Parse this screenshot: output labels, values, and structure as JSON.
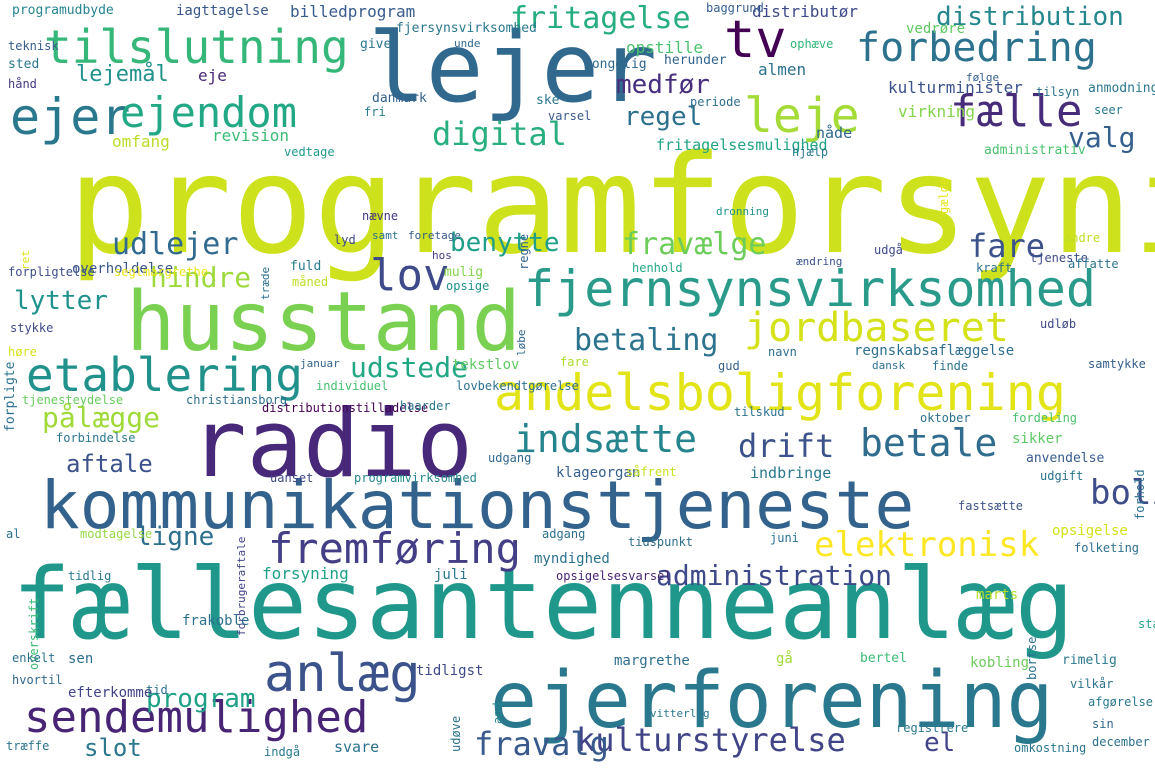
{
  "words": [
    {
      "text": "programforsyning",
      "color": "#cde11d"
    },
    {
      "text": "fællesantenneanlæg",
      "color": "#1f988b"
    },
    {
      "text": "kommunikationstjeneste",
      "color": "#33638d"
    },
    {
      "text": "husstand",
      "color": "#7ad151"
    },
    {
      "text": "radio",
      "color": "#482878"
    },
    {
      "text": "ejerforening",
      "color": "#2a788e"
    },
    {
      "text": "lejer",
      "color": "#31688e"
    },
    {
      "text": "andelsboligforening",
      "color": "#e2e418"
    },
    {
      "text": "fjernsynsvirksomhed",
      "color": "#2a9b8a"
    },
    {
      "text": "anlæg",
      "color": "#3b528b"
    },
    {
      "text": "sendemulighed",
      "color": "#482475"
    },
    {
      "text": "tilslutning",
      "color": "#35b779"
    },
    {
      "text": "ejer",
      "color": "#2a788e"
    },
    {
      "text": "ejendom",
      "color": "#22a884"
    },
    {
      "text": "fremføring",
      "color": "#433e85"
    },
    {
      "text": "etablering",
      "color": "#21918c"
    },
    {
      "text": "leje",
      "color": "#a5db36"
    },
    {
      "text": "forbedring",
      "color": "#2c728e"
    },
    {
      "text": "tv",
      "color": "#440154"
    },
    {
      "text": "fælle",
      "color": "#472c7a"
    },
    {
      "text": "lov",
      "color": "#3e4a89"
    },
    {
      "text": "jordbaseret",
      "color": "#d5e21a"
    },
    {
      "text": "indsætte",
      "color": "#25848e"
    },
    {
      "text": "betale",
      "color": "#2f6c8e"
    },
    {
      "text": "elektronisk",
      "color": "#fde725"
    },
    {
      "text": "kulturstyrelse",
      "color": "#414487"
    },
    {
      "text": "digital",
      "color": "#29af7f"
    },
    {
      "text": "udlejer",
      "color": "#306a8e"
    },
    {
      "text": "betaling",
      "color": "#2c738e"
    },
    {
      "text": "administration",
      "color": "#3e4989"
    },
    {
      "text": "drift",
      "color": "#3b528b"
    },
    {
      "text": "fritagelse",
      "color": "#26ad81"
    },
    {
      "text": "distribution",
      "color": "#24878e"
    },
    {
      "text": "fare",
      "color": "#3b528b"
    },
    {
      "text": "hindre",
      "color": "#9dd93b"
    },
    {
      "text": "fravælge",
      "color": "#6ccd5a"
    },
    {
      "text": "benytte",
      "color": "#1f9e89"
    },
    {
      "text": "udstede",
      "color": "#22a785"
    },
    {
      "text": "pålægge",
      "color": "#a0da39"
    },
    {
      "text": "lytter",
      "color": "#20928c"
    },
    {
      "text": "lejemål",
      "color": "#21918c"
    },
    {
      "text": "medfør",
      "color": "#472f7d"
    },
    {
      "text": "regel",
      "color": "#2d708e"
    },
    {
      "text": "valg",
      "color": "#355f8d"
    },
    {
      "text": "ligne",
      "color": "#2e6f8e"
    },
    {
      "text": "program",
      "color": "#1fa187"
    },
    {
      "text": "aftale",
      "color": "#3b528b"
    },
    {
      "text": "fravalg",
      "color": "#38598c"
    },
    {
      "text": "el",
      "color": "#414487"
    },
    {
      "text": "bolig",
      "color": "#3e4c8a"
    },
    {
      "text": "slot",
      "color": "#2a778e"
    },
    {
      "text": "eje",
      "color": "#482878"
    },
    {
      "text": "almen",
      "color": "#2c728e"
    },
    {
      "text": "distributør",
      "color": "#3e4989"
    },
    {
      "text": "billedprogram",
      "color": "#375b8d"
    },
    {
      "text": "iagttagelse",
      "color": "#38588c"
    },
    {
      "text": "programudbyde",
      "color": "#25848e"
    },
    {
      "text": "fjersynsvirksomhed",
      "color": "#2a788e"
    },
    {
      "text": "opstille",
      "color": "#4ac16d"
    },
    {
      "text": "kongelig",
      "color": "#31688e"
    },
    {
      "text": "herunder",
      "color": "#33638d"
    },
    {
      "text": "ophæve",
      "color": "#34b679"
    },
    {
      "text": "baggrund",
      "color": "#355f8d"
    },
    {
      "text": "teknisk",
      "color": "#365c8d"
    },
    {
      "text": "sted",
      "color": "#2a788e"
    },
    {
      "text": "hånd",
      "color": "#443a83"
    },
    {
      "text": "give",
      "color": "#2c738e"
    },
    {
      "text": "unde",
      "color": "#31688e"
    },
    {
      "text": "danmark",
      "color": "#33638d"
    },
    {
      "text": "fri",
      "color": "#287c8e"
    },
    {
      "text": "ske",
      "color": "#2a778e"
    },
    {
      "text": "varsel",
      "color": "#38598c"
    },
    {
      "text": "periode",
      "color": "#2e6f8e"
    },
    {
      "text": "revision",
      "color": "#3bbb75"
    },
    {
      "text": "omfang",
      "color": "#bade28"
    },
    {
      "text": "vedtage",
      "color": "#1f9a8a"
    },
    {
      "text": "fritagelsesmulighed",
      "color": "#20a386"
    },
    {
      "text": "hjælp",
      "color": "#2a788e"
    },
    {
      "text": "nåde",
      "color": "#31688e"
    },
    {
      "text": "kulturminister",
      "color": "#3b528b"
    },
    {
      "text": "virkning",
      "color": "#84d44b"
    },
    {
      "text": "anmodning",
      "color": "#2a788e"
    },
    {
      "text": "tilsyn",
      "color": "#2c728e"
    },
    {
      "text": "seer",
      "color": "#2a788e"
    },
    {
      "text": "følge",
      "color": "#355f8d"
    },
    {
      "text": "vedrøre",
      "color": "#5ec962"
    },
    {
      "text": "gælde",
      "color": "#e5e419"
    },
    {
      "text": "administrativ",
      "color": "#4ac16d"
    },
    {
      "text": "ret",
      "color": "#dde318"
    },
    {
      "text": "forpligtelse",
      "color": "#3e4c8a"
    },
    {
      "text": "overholdelse",
      "color": "#39568c"
    },
    {
      "text": "seglmargrethe",
      "color": "#e8e419"
    },
    {
      "text": "fuld",
      "color": "#287c8e"
    },
    {
      "text": "lyd",
      "color": "#3e4989"
    },
    {
      "text": "samt",
      "color": "#2c728e"
    },
    {
      "text": "foretage",
      "color": "#365c8d"
    },
    {
      "text": "hos",
      "color": "#443983"
    },
    {
      "text": "nævne",
      "color": "#453781"
    },
    {
      "text": "træde",
      "color": "#2d708e"
    },
    {
      "text": "måned",
      "color": "#bddf26"
    },
    {
      "text": "mulig",
      "color": "#85d54a"
    },
    {
      "text": "opsige",
      "color": "#21918c"
    },
    {
      "text": "regne",
      "color": "#32648e"
    },
    {
      "text": "dronning",
      "color": "#20928c"
    },
    {
      "text": "henhold",
      "color": "#22a884"
    },
    {
      "text": "ændring",
      "color": "#3b528b"
    },
    {
      "text": "udgå",
      "color": "#3e4a89"
    },
    {
      "text": "kraft",
      "color": "#2d708e"
    },
    {
      "text": "andre",
      "color": "#c0df25"
    },
    {
      "text": "tjeneste",
      "color": "#3e4c8a"
    },
    {
      "text": "affatte",
      "color": "#2c728e"
    },
    {
      "text": "stykke",
      "color": "#3e4989"
    },
    {
      "text": "høre",
      "color": "#d8e219"
    },
    {
      "text": "forpligte",
      "color": "#2d708e"
    },
    {
      "text": "tjenesteydelse",
      "color": "#67cc5c"
    },
    {
      "text": "januar",
      "color": "#33638d"
    },
    {
      "text": "individuel",
      "color": "#44bf70"
    },
    {
      "text": "fare",
      "color": "#addc30"
    },
    {
      "text": "løbe",
      "color": "#31688e"
    },
    {
      "text": "lovbekendtgørelse",
      "color": "#2e6f8e"
    },
    {
      "text": "gud",
      "color": "#34618d"
    },
    {
      "text": "navn",
      "color": "#2e6f8e"
    },
    {
      "text": "dansk",
      "color": "#2d708e"
    },
    {
      "text": "finde",
      "color": "#2c728e"
    },
    {
      "text": "samtykke",
      "color": "#355f8d"
    },
    {
      "text": "udløb",
      "color": "#3e4989"
    },
    {
      "text": "regnskabsaflæggelse",
      "color": "#2e6f8e"
    },
    {
      "text": "tekstlov",
      "color": "#5ec962"
    },
    {
      "text": "christiansborg",
      "color": "#2e6f8e"
    },
    {
      "text": "distributionstilladelse",
      "color": "#440154"
    },
    {
      "text": "haarder",
      "color": "#2a788e"
    },
    {
      "text": "tilskud",
      "color": "#2c728e"
    },
    {
      "text": "oktober",
      "color": "#2c728e"
    },
    {
      "text": "fordeling",
      "color": "#4ac16d"
    },
    {
      "text": "forbindelse",
      "color": "#2a788e"
    },
    {
      "text": "sikker",
      "color": "#5ec962"
    },
    {
      "text": "anvendelse",
      "color": "#375b8d"
    },
    {
      "text": "udgift",
      "color": "#2c728e"
    },
    {
      "text": "klageorgan",
      "color": "#355f8d"
    },
    {
      "text": "indbringe",
      "color": "#2a788e"
    },
    {
      "text": "udgang",
      "color": "#31688e"
    },
    {
      "text": "uanset",
      "color": "#3e4989"
    },
    {
      "text": "programvirksomhed",
      "color": "#24878e"
    },
    {
      "text": "såfrent",
      "color": "#c8e020"
    },
    {
      "text": "forhold",
      "color": "#2c728e"
    },
    {
      "text": "fastsætte",
      "color": "#3b528b"
    },
    {
      "text": "opsigelse",
      "color": "#d2e21b"
    },
    {
      "text": "folketing",
      "color": "#2e6f8e"
    },
    {
      "text": "al",
      "color": "#2c728e"
    },
    {
      "text": "modtagelse",
      "color": "#95d840"
    },
    {
      "text": "adgang",
      "color": "#2d708e"
    },
    {
      "text": "tidspunkt",
      "color": "#2e6f8e"
    },
    {
      "text": "juni",
      "color": "#2c728e"
    },
    {
      "text": "tidlig",
      "color": "#2a788e"
    },
    {
      "text": "forsyning",
      "color": "#1fa187"
    },
    {
      "text": "juli",
      "color": "#2a788e"
    },
    {
      "text": "myndighed",
      "color": "#2c728e"
    },
    {
      "text": "opsigelsesvarsel",
      "color": "#482475"
    },
    {
      "text": "marts",
      "color": "#b5de2b"
    },
    {
      "text": "frakoble",
      "color": "#2c728e"
    },
    {
      "text": "overskrift",
      "color": "#3bbb75"
    },
    {
      "text": "forbrugeraftale",
      "color": "#414487"
    },
    {
      "text": "bortse",
      "color": "#2c728e"
    },
    {
      "text": "stadfæste",
      "color": "#20a386"
    },
    {
      "text": "sen",
      "color": "#2e6f8e"
    },
    {
      "text": "margrethe",
      "color": "#2e6f8e"
    },
    {
      "text": "gå",
      "color": "#a2da37"
    },
    {
      "text": "bertel",
      "color": "#3bbb75"
    },
    {
      "text": "kobling",
      "color": "#6ccd5a"
    },
    {
      "text": "rimelig",
      "color": "#2a788e"
    },
    {
      "text": "tidligst",
      "color": "#3e4989"
    },
    {
      "text": "enkelt",
      "color": "#2c728e"
    },
    {
      "text": "hvortil",
      "color": "#31688e"
    },
    {
      "text": "efterkomme",
      "color": "#414487"
    },
    {
      "text": "tid",
      "color": "#2c728e"
    },
    {
      "text": "and",
      "color": "#24878e"
    },
    {
      "text": "udøve",
      "color": "#2c728e"
    },
    {
      "text": "vitterlig",
      "color": "#2a788e"
    },
    {
      "text": "vilkår",
      "color": "#2c728e"
    },
    {
      "text": "afgørelse",
      "color": "#2a788e"
    },
    {
      "text": "sin",
      "color": "#31688e"
    },
    {
      "text": "registrere",
      "color": "#2a788e"
    },
    {
      "text": "træffe",
      "color": "#2c728e"
    },
    {
      "text": "indgå",
      "color": "#2a788e"
    },
    {
      "text": "svare",
      "color": "#2c728e"
    },
    {
      "text": "omkostning",
      "color": "#2a788e"
    },
    {
      "text": "december",
      "color": "#2c728e"
    },
    {
      "text": "foretagende",
      "color": "#414487"
    },
    {
      "text": "fritage",
      "color": "#95d840"
    },
    {
      "text": "forening",
      "color": "#84d44b"
    }
  ]
}
